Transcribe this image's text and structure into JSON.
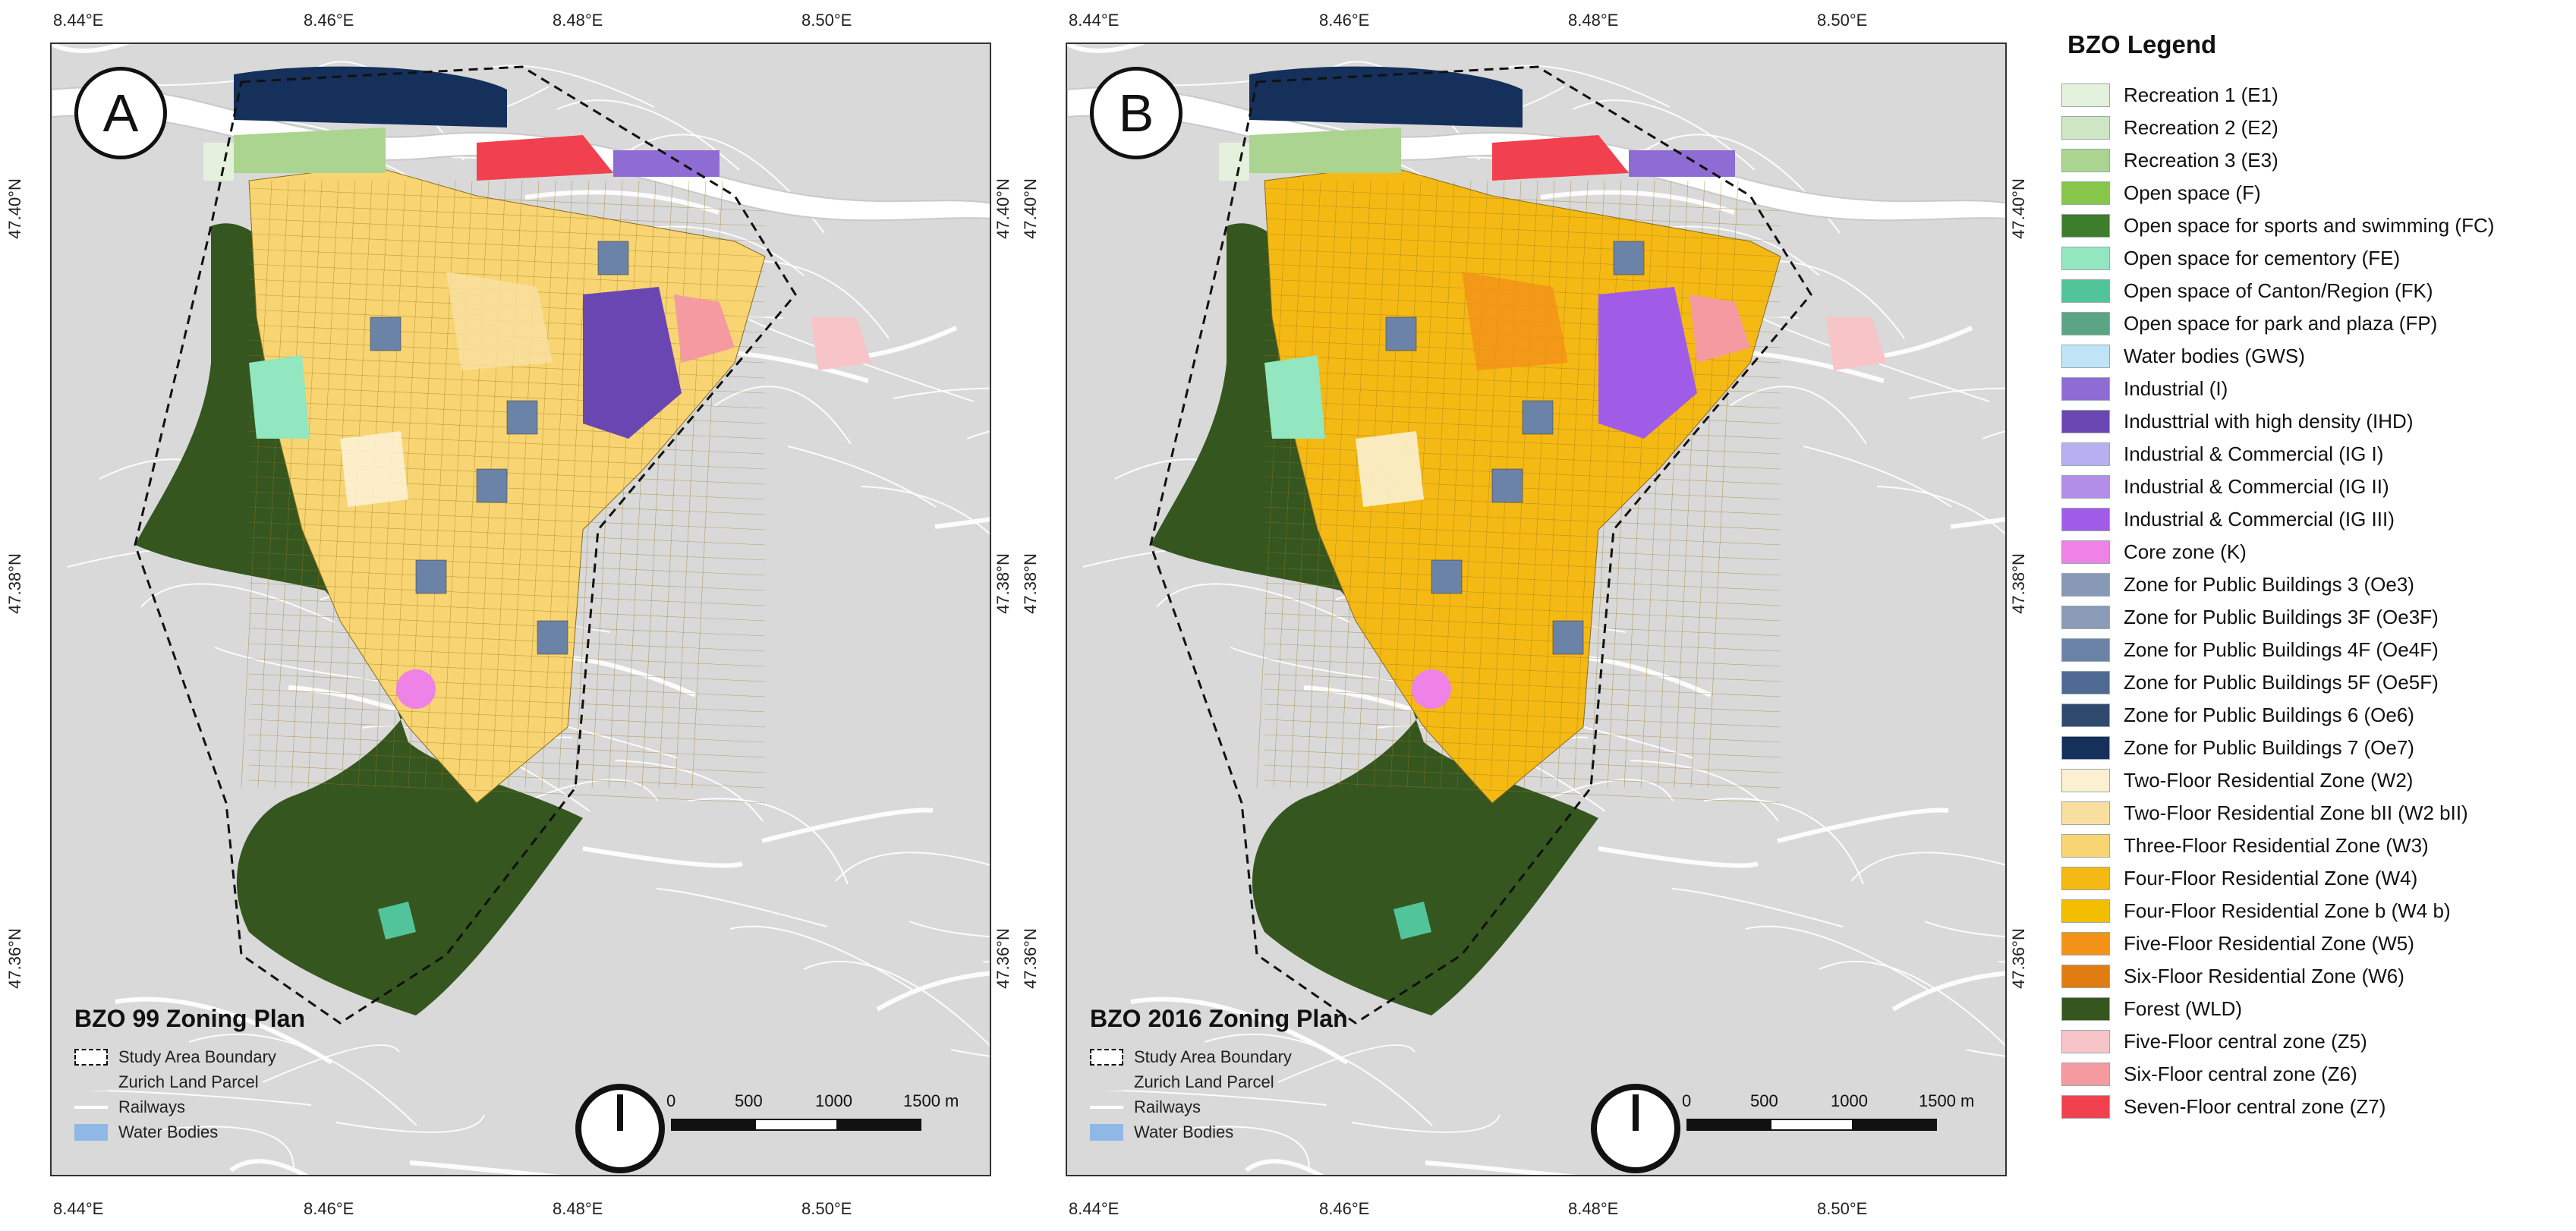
{
  "panels": [
    {
      "badge": "A",
      "plan_title": "BZO 99 Zoning Plan",
      "variant": "bzo99"
    },
    {
      "badge": "B",
      "plan_title": "BZO 2016 Zoning Plan",
      "variant": "bzo2016"
    }
  ],
  "axes": {
    "lon_labels": [
      "8.44°E",
      "8.46°E",
      "8.48°E",
      "8.50°E"
    ],
    "lat_labels": [
      "47.40°N",
      "47.38°N",
      "47.36°N"
    ]
  },
  "map_legend": [
    {
      "label": "Study Area Boundary",
      "style": "dashed"
    },
    {
      "label": "Zurich Land Parcel",
      "color": "#d9d9d9"
    },
    {
      "label": "Railways",
      "color": "#ffffff"
    },
    {
      "label": "Water Bodies",
      "color": "#8fb8e6"
    }
  ],
  "scale_bar": {
    "labels": [
      "0",
      "500",
      "1000",
      "1500 m"
    ]
  },
  "legend": {
    "title": "BZO Legend",
    "items": [
      {
        "label": "Recreation 1 (E1)",
        "color": "#e4f1dc"
      },
      {
        "label": "Recreation 2 (E2)",
        "color": "#cfe6c4"
      },
      {
        "label": "Recreation 3 (E3)",
        "color": "#aad48f"
      },
      {
        "label": "Open space (F)",
        "color": "#86c64a"
      },
      {
        "label": "Open space for sports and swimming (FC)",
        "color": "#3e7d2b"
      },
      {
        "label": "Open space for cementory (FE)",
        "color": "#92e6c0"
      },
      {
        "label": "Open space of Canton/Region (FK)",
        "color": "#52c49a"
      },
      {
        "label": "Open space for park and plaza (FP)",
        "color": "#5ba585"
      },
      {
        "label": "Water bodies (GWS)",
        "color": "#bfe4f7"
      },
      {
        "label": "Industrial (I)",
        "color": "#8e6cd3"
      },
      {
        "label": "Industtrial with high density (IHD)",
        "color": "#6a46b3"
      },
      {
        "label": "Industrial & Commercial (IG I)",
        "color": "#b6b0f0"
      },
      {
        "label": "Industrial & Commercial (IG II)",
        "color": "#b38ee8"
      },
      {
        "label": "Industrial & Commercial (IG III)",
        "color": "#a05ce6"
      },
      {
        "label": "Core zone (K)",
        "color": "#ee82e6"
      },
      {
        "label": "Zone for Public Buildings 3 (Oe3)",
        "color": "#8799b6"
      },
      {
        "label": "Zone for Public Buildings 3F (Oe3F)",
        "color": "#8a9bb7"
      },
      {
        "label": "Zone for Public Buildings 4F (Oe4F)",
        "color": "#6c83a8"
      },
      {
        "label": "Zone for Public Buildings 5F (Oe5F)",
        "color": "#4f6a92"
      },
      {
        "label": "Zone for Public Buildings 6 (Oe6)",
        "color": "#2f4a6e"
      },
      {
        "label": "Zone for Public Buildings 7 (Oe7)",
        "color": "#15305a"
      },
      {
        "label": "Two-Floor Residential Zone (W2)",
        "color": "#fbf1d2"
      },
      {
        "label": "Two-Floor Residential Zone bII (W2 bII)",
        "color": "#f8dfa0"
      },
      {
        "label": "Three-Floor Residential Zone  (W3)",
        "color": "#f8d572"
      },
      {
        "label": "Four-Floor Residential Zone (W4)",
        "color": "#f5b914"
      },
      {
        "label": "Four-Floor Residential Zone b (W4 b)",
        "color": "#f3be00"
      },
      {
        "label": "Five-Floor Residential Zone (W5)",
        "color": "#f29318"
      },
      {
        "label": "Six-Floor Residential Zone (W6)",
        "color": "#e07c10"
      },
      {
        "label": "Forest (WLD)",
        "color": "#35561f"
      },
      {
        "label": "Five-Floor central zone (Z5)",
        "color": "#f7c5c8"
      },
      {
        "label": "Six-Floor central zone (Z6)",
        "color": "#f49aa0"
      },
      {
        "label": "Seven-Floor central zone (Z7)",
        "color": "#f1414f"
      }
    ]
  }
}
